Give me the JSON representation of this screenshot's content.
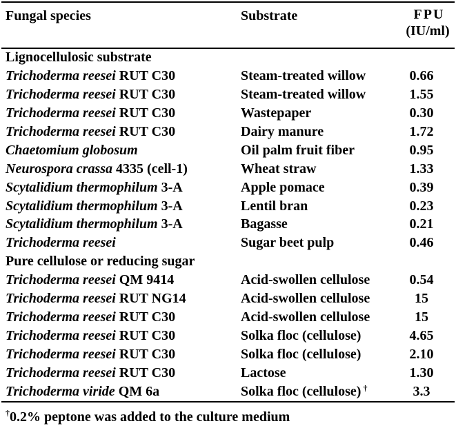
{
  "header": {
    "species": "Fungal species",
    "substrate": "Substrate",
    "fpu_line1": "FPU",
    "fpu_line2": "(IU/ml)"
  },
  "sections": [
    {
      "title": "Lignocellulosic substrate",
      "rows": [
        {
          "species_italic": "Trichoderma reesei",
          "strain": " RUT C30",
          "substrate": "Steam-treated willow",
          "fpu": "0.66",
          "mark": ""
        },
        {
          "species_italic": "Trichoderma reesei",
          "strain": " RUT C30",
          "substrate": "Steam-treated willow",
          "fpu": "1.55",
          "mark": ""
        },
        {
          "species_italic": "Trichoderma reesei",
          "strain": " RUT C30",
          "substrate": "Wastepaper",
          "fpu": "0.30",
          "mark": ""
        },
        {
          "species_italic": "Trichoderma reesei",
          "strain": " RUT C30",
          "substrate": "Dairy manure",
          "fpu": "1.72",
          "mark": ""
        },
        {
          "species_italic": "Chaetomium globosum",
          "strain": "",
          "substrate": "Oil palm fruit fiber",
          "fpu": "0.95",
          "mark": ""
        },
        {
          "species_italic": "Neurospora crassa",
          "strain": " 4335 (cell-1)",
          "substrate": "Wheat straw",
          "fpu": "1.33",
          "mark": ""
        },
        {
          "species_italic": "Scytalidium thermophilum",
          "strain": " 3-A",
          "substrate": "Apple pomace",
          "fpu": "0.39",
          "mark": ""
        },
        {
          "species_italic": "Scytalidium thermophilum",
          "strain": " 3-A",
          "substrate": "Lentil bran",
          "fpu": "0.23",
          "mark": ""
        },
        {
          "species_italic": "Scytalidium thermophilum",
          "strain": " 3-A",
          "substrate": "Bagasse",
          "fpu": "0.21",
          "mark": ""
        },
        {
          "species_italic": "Trichoderma reesei",
          "strain": "",
          "substrate": "Sugar beet pulp",
          "fpu": "0.46",
          "mark": ""
        }
      ]
    },
    {
      "title": "Pure cellulose or reducing sugar",
      "rows": [
        {
          "species_italic": "Trichoderma reesei",
          "strain": " QM 9414",
          "substrate": "Acid-swollen cellulose",
          "fpu": "0.54",
          "mark": ""
        },
        {
          "species_italic": "Trichoderma reesei",
          "strain": " RUT NG14",
          "substrate": "Acid-swollen cellulose",
          "fpu": "15",
          "mark": ""
        },
        {
          "species_italic": "Trichoderma reesei",
          "strain": " RUT C30",
          "substrate": "Acid-swollen cellulose",
          "fpu": "15",
          "mark": ""
        },
        {
          "species_italic": "Trichoderma reesei",
          "strain": " RUT C30",
          "substrate": "Solka floc (cellulose)",
          "fpu": "4.65",
          "mark": ""
        },
        {
          "species_italic": "Trichoderma reesei",
          "strain": " RUT C30",
          "substrate": "Solka floc (cellulose)",
          "fpu": "2.10",
          "mark": ""
        },
        {
          "species_italic": "Trichoderma reesei",
          "strain": " RUT C30",
          "substrate": "Lactose",
          "fpu": "1.30",
          "mark": ""
        },
        {
          "species_italic": "Trichoderma viride",
          "strain": " QM 6a",
          "substrate": "Solka floc (cellulose)",
          "fpu": "3.3",
          "mark": "†"
        }
      ]
    }
  ],
  "footnote": {
    "mark": "†",
    "text": "0.2% peptone was added to the culture medium"
  }
}
